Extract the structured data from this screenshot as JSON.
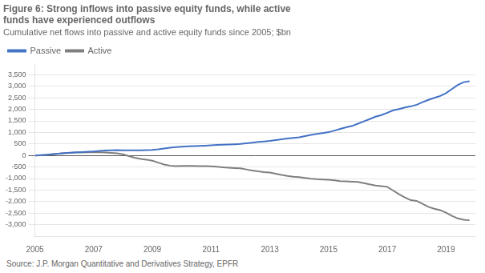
{
  "chart_data": {
    "type": "line",
    "title": [
      "Figure 6: Strong inflows into passive equity funds, while active",
      "funds have experienced outflows"
    ],
    "subtitle": "Cumulative net flows into passive and active equity funds since 2005; $bn",
    "source": "Source: J.P. Morgan Quantitative and Derivatives Strategy, EPFR",
    "x": [
      2005.0,
      2005.2,
      2005.4,
      2005.6,
      2005.8,
      2006.0,
      2006.2,
      2006.4,
      2006.6,
      2006.8,
      2007.0,
      2007.2,
      2007.4,
      2007.6,
      2007.8,
      2008.0,
      2008.2,
      2008.4,
      2008.6,
      2008.8,
      2009.0,
      2009.2,
      2009.4,
      2009.6,
      2009.8,
      2010.0,
      2010.2,
      2010.4,
      2010.6,
      2010.8,
      2011.0,
      2011.2,
      2011.4,
      2011.6,
      2011.8,
      2012.0,
      2012.2,
      2012.4,
      2012.6,
      2012.8,
      2013.0,
      2013.2,
      2013.4,
      2013.6,
      2013.8,
      2014.0,
      2014.2,
      2014.4,
      2014.6,
      2014.8,
      2015.0,
      2015.2,
      2015.4,
      2015.6,
      2015.8,
      2016.0,
      2016.2,
      2016.4,
      2016.6,
      2016.8,
      2017.0,
      2017.2,
      2017.4,
      2017.6,
      2017.8,
      2018.0,
      2018.2,
      2018.4,
      2018.6,
      2018.8,
      2019.0,
      2019.2,
      2019.4,
      2019.6,
      2019.8
    ],
    "series": [
      {
        "name": "Passive",
        "color": "#4472C4",
        "values": [
          0,
          15,
          30,
          55,
          80,
          105,
          120,
          135,
          150,
          160,
          175,
          195,
          215,
          225,
          230,
          225,
          220,
          220,
          225,
          230,
          240,
          265,
          305,
          340,
          365,
          380,
          395,
          405,
          415,
          425,
          440,
          455,
          465,
          475,
          485,
          500,
          525,
          555,
          585,
          610,
          630,
          665,
          700,
          735,
          760,
          790,
          840,
          890,
          935,
          970,
          1010,
          1080,
          1150,
          1220,
          1280,
          1380,
          1480,
          1580,
          1680,
          1750,
          1850,
          1960,
          2010,
          2080,
          2130,
          2200,
          2310,
          2410,
          2500,
          2580,
          2700,
          2880,
          3060,
          3180,
          3220
        ]
      },
      {
        "name": "Active",
        "color": "#7f7f7f",
        "values": [
          0,
          10,
          20,
          50,
          80,
          105,
          115,
          125,
          130,
          135,
          140,
          135,
          125,
          110,
          90,
          50,
          -30,
          -100,
          -150,
          -180,
          -230,
          -310,
          -390,
          -440,
          -460,
          -455,
          -450,
          -455,
          -460,
          -465,
          -470,
          -490,
          -510,
          -530,
          -545,
          -560,
          -605,
          -650,
          -690,
          -720,
          -740,
          -790,
          -845,
          -890,
          -920,
          -940,
          -975,
          -1010,
          -1030,
          -1040,
          -1055,
          -1080,
          -1110,
          -1125,
          -1135,
          -1150,
          -1200,
          -1255,
          -1300,
          -1330,
          -1360,
          -1520,
          -1680,
          -1820,
          -1940,
          -1970,
          -2100,
          -2230,
          -2310,
          -2370,
          -2480,
          -2620,
          -2730,
          -2790,
          -2810
        ]
      }
    ],
    "xlim": [
      2005,
      2020.0
    ],
    "xticks": [
      2005,
      2007,
      2009,
      2011,
      2013,
      2015,
      2017,
      2019
    ],
    "ylim": [
      -3500,
      4000
    ],
    "yticks": [
      {
        "value": -3000,
        "label": "-3,000"
      },
      {
        "value": -2500,
        "label": "-2,500"
      },
      {
        "value": -2000,
        "label": "-2,000"
      },
      {
        "value": -1500,
        "label": "-1,500"
      },
      {
        "value": -1000,
        "label": "-1,000"
      },
      -500,
      0,
      500,
      {
        "value": 1000,
        "label": "1,000"
      },
      {
        "value": 1500,
        "label": "1,500"
      },
      {
        "value": 2000,
        "label": "2,000"
      },
      {
        "value": 2500,
        "label": "2,500"
      },
      {
        "value": 3000,
        "label": "3,000"
      },
      {
        "value": 3500,
        "label": "3,500"
      }
    ],
    "grid": true,
    "legend": "upper left"
  }
}
